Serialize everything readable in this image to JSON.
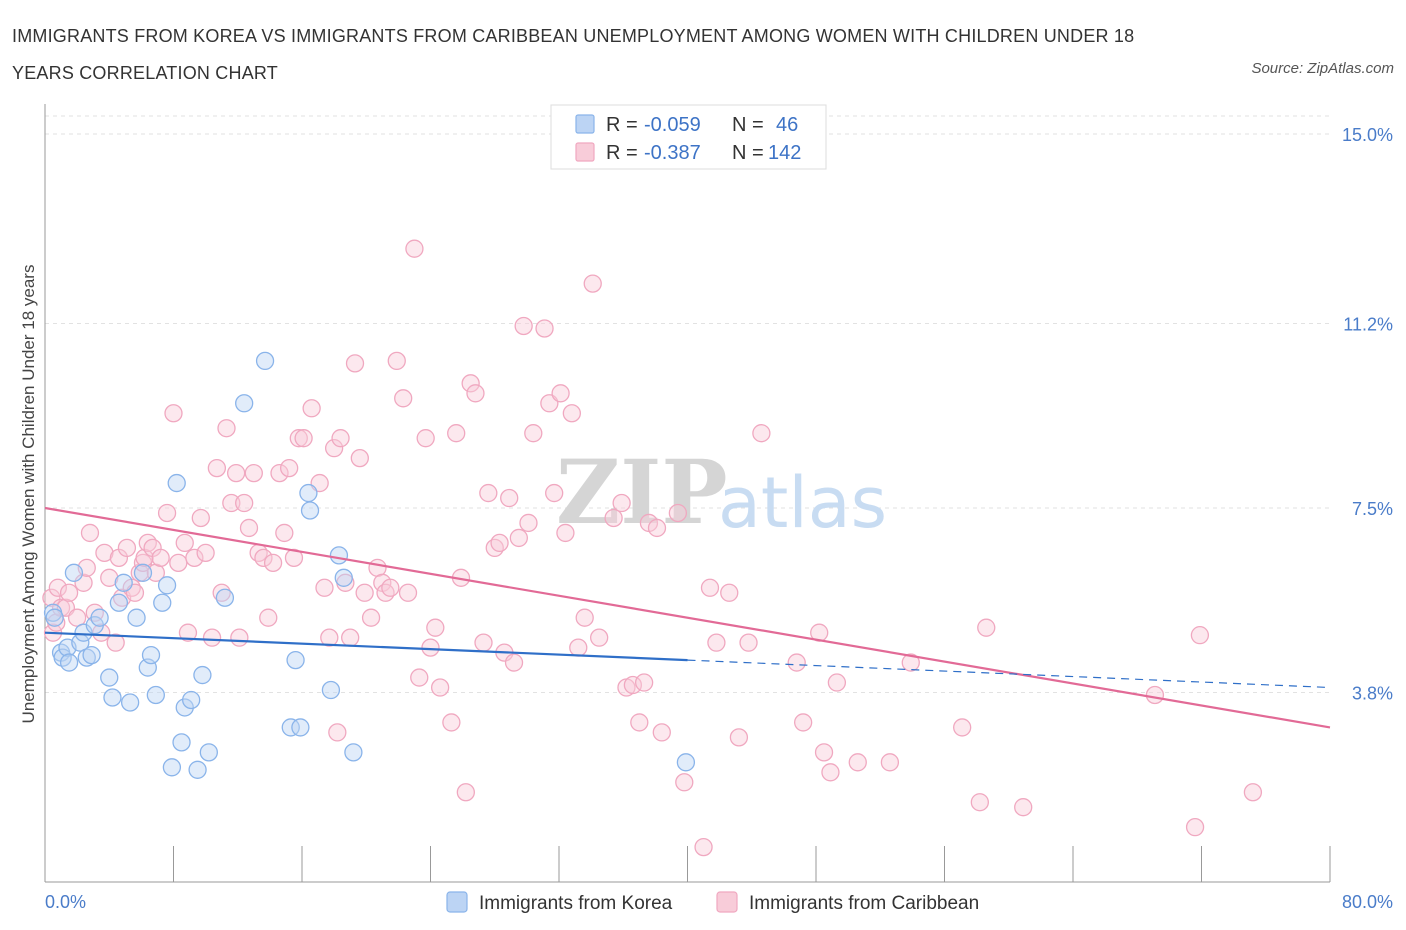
{
  "title": "IMMIGRANTS FROM KOREA VS IMMIGRANTS FROM CARIBBEAN UNEMPLOYMENT AMONG WOMEN WITH CHILDREN UNDER 18 YEARS CORRELATION CHART",
  "source": "Source: ZipAtlas.com",
  "watermark": {
    "zip": "ZIP",
    "atlas": "atlas"
  },
  "legend": {
    "korea": {
      "r_label": "R = ",
      "r_value": "-0.059",
      "n_label": "N = ",
      "n_value": "46"
    },
    "caribbean": {
      "r_label": "R = ",
      "r_value": "-0.387",
      "n_label": "N = ",
      "n_value": "142"
    }
  },
  "chart_data": {
    "type": "scatter",
    "title": "IMMIGRANTS FROM KOREA VS IMMIGRANTS FROM CARIBBEAN UNEMPLOYMENT AMONG WOMEN WITH CHILDREN UNDER 18 YEARS CORRELATION CHART",
    "xlabel": "",
    "ylabel": "Unemployment Among Women with Children Under 18 years",
    "xlim": [
      0,
      80
    ],
    "ylim": [
      0,
      15
    ],
    "x_tick_labels": [
      "0.0%",
      "80.0%"
    ],
    "y_ticks": [
      3.8,
      7.5,
      11.2,
      15.0
    ],
    "y_tick_labels": [
      "3.8%",
      "7.5%",
      "11.2%",
      "15.0%"
    ],
    "grid": true,
    "legend_position": "top-center",
    "colors": {
      "korea": "#8ab4ea",
      "caribbean": "#f0a8c0",
      "korea_line": "#2f6fc8",
      "caribbean_line": "#e26a96"
    },
    "series": [
      {
        "name": "Immigrants from Korea",
        "r": -0.059,
        "n": 46,
        "trend": {
          "x": [
            0,
            40
          ],
          "y": [
            5.0,
            4.45
          ]
        },
        "trend_dashed": {
          "x": [
            40,
            80
          ],
          "y": [
            4.45,
            3.9
          ]
        },
        "points": [
          [
            0.5,
            5.4
          ],
          [
            0.6,
            5.3
          ],
          [
            1.0,
            4.6
          ],
          [
            1.1,
            4.5
          ],
          [
            1.4,
            4.7
          ],
          [
            1.5,
            4.4
          ],
          [
            1.8,
            6.2
          ],
          [
            2.2,
            4.8
          ],
          [
            2.4,
            5.0
          ],
          [
            2.6,
            4.5
          ],
          [
            2.9,
            4.55
          ],
          [
            3.1,
            5.15
          ],
          [
            3.4,
            5.3
          ],
          [
            4.0,
            4.1
          ],
          [
            4.2,
            3.7
          ],
          [
            4.6,
            5.6
          ],
          [
            4.9,
            6.0
          ],
          [
            5.3,
            3.6
          ],
          [
            5.7,
            5.3
          ],
          [
            6.1,
            6.2
          ],
          [
            6.4,
            4.3
          ],
          [
            6.6,
            4.55
          ],
          [
            6.9,
            3.75
          ],
          [
            7.3,
            5.6
          ],
          [
            7.6,
            5.95
          ],
          [
            7.9,
            2.3
          ],
          [
            8.2,
            8.0
          ],
          [
            8.5,
            2.8
          ],
          [
            8.7,
            3.5
          ],
          [
            9.1,
            3.65
          ],
          [
            9.5,
            2.25
          ],
          [
            9.8,
            4.15
          ],
          [
            10.2,
            2.6
          ],
          [
            11.2,
            5.7
          ],
          [
            12.4,
            9.6
          ],
          [
            13.7,
            10.45
          ],
          [
            15.3,
            3.1
          ],
          [
            15.6,
            4.45
          ],
          [
            15.9,
            3.1
          ],
          [
            16.4,
            7.8
          ],
          [
            16.5,
            7.45
          ],
          [
            17.8,
            3.85
          ],
          [
            18.3,
            6.55
          ],
          [
            18.6,
            6.1
          ],
          [
            19.2,
            2.6
          ],
          [
            39.9,
            2.4
          ]
        ]
      },
      {
        "name": "Immigrants from Caribbean",
        "r": -0.387,
        "n": 142,
        "trend": {
          "x": [
            0,
            80
          ],
          "y": [
            7.5,
            3.1
          ]
        },
        "points": [
          [
            0.4,
            5.7
          ],
          [
            0.5,
            5.0
          ],
          [
            0.7,
            5.2
          ],
          [
            0.8,
            5.9
          ],
          [
            1.0,
            5.5
          ],
          [
            1.3,
            5.5
          ],
          [
            1.5,
            5.8
          ],
          [
            2.0,
            5.3
          ],
          [
            2.4,
            6.0
          ],
          [
            2.6,
            6.3
          ],
          [
            2.8,
            7.0
          ],
          [
            3.1,
            5.4
          ],
          [
            3.5,
            5.0
          ],
          [
            3.7,
            6.6
          ],
          [
            4.0,
            6.1
          ],
          [
            4.4,
            4.8
          ],
          [
            4.6,
            6.5
          ],
          [
            4.8,
            5.7
          ],
          [
            5.1,
            6.7
          ],
          [
            5.4,
            5.9
          ],
          [
            5.6,
            5.8
          ],
          [
            5.9,
            6.2
          ],
          [
            6.1,
            6.4
          ],
          [
            6.2,
            6.5
          ],
          [
            6.4,
            6.8
          ],
          [
            6.7,
            6.7
          ],
          [
            6.9,
            6.2
          ],
          [
            7.2,
            6.5
          ],
          [
            7.6,
            7.4
          ],
          [
            8.0,
            9.4
          ],
          [
            8.3,
            6.4
          ],
          [
            8.7,
            6.8
          ],
          [
            8.9,
            5.0
          ],
          [
            9.3,
            6.5
          ],
          [
            9.7,
            7.3
          ],
          [
            10.0,
            6.6
          ],
          [
            10.4,
            4.9
          ],
          [
            10.7,
            8.3
          ],
          [
            11.0,
            5.8
          ],
          [
            11.3,
            9.1
          ],
          [
            11.6,
            7.6
          ],
          [
            11.9,
            8.2
          ],
          [
            12.1,
            4.9
          ],
          [
            12.4,
            7.6
          ],
          [
            12.7,
            7.1
          ],
          [
            13.0,
            8.2
          ],
          [
            13.3,
            6.6
          ],
          [
            13.6,
            6.5
          ],
          [
            13.9,
            5.3
          ],
          [
            14.2,
            6.4
          ],
          [
            14.6,
            8.2
          ],
          [
            14.9,
            7.0
          ],
          [
            15.2,
            8.3
          ],
          [
            15.5,
            6.5
          ],
          [
            15.8,
            8.9
          ],
          [
            16.1,
            8.9
          ],
          [
            16.6,
            9.5
          ],
          [
            17.1,
            8.0
          ],
          [
            17.4,
            5.9
          ],
          [
            17.7,
            4.9
          ],
          [
            18.0,
            8.7
          ],
          [
            18.2,
            3.0
          ],
          [
            18.4,
            8.9
          ],
          [
            18.7,
            6.0
          ],
          [
            19.0,
            4.9
          ],
          [
            19.3,
            10.4
          ],
          [
            19.6,
            8.5
          ],
          [
            19.9,
            5.8
          ],
          [
            20.3,
            5.3
          ],
          [
            20.7,
            6.3
          ],
          [
            21.0,
            6.0
          ],
          [
            21.2,
            5.8
          ],
          [
            21.5,
            5.9
          ],
          [
            21.9,
            10.45
          ],
          [
            22.3,
            9.7
          ],
          [
            22.6,
            5.8
          ],
          [
            23.0,
            12.7
          ],
          [
            23.3,
            4.1
          ],
          [
            23.7,
            8.9
          ],
          [
            24.0,
            4.7
          ],
          [
            24.3,
            5.1
          ],
          [
            24.6,
            3.9
          ],
          [
            25.3,
            3.2
          ],
          [
            25.6,
            9.0
          ],
          [
            25.9,
            6.1
          ],
          [
            26.2,
            1.8
          ],
          [
            26.5,
            10.0
          ],
          [
            26.8,
            9.8
          ],
          [
            27.3,
            4.8
          ],
          [
            27.6,
            7.8
          ],
          [
            28.0,
            6.7
          ],
          [
            28.3,
            6.8
          ],
          [
            28.6,
            4.6
          ],
          [
            28.9,
            7.7
          ],
          [
            29.2,
            4.4
          ],
          [
            29.5,
            6.9
          ],
          [
            29.8,
            11.15
          ],
          [
            30.1,
            7.2
          ],
          [
            30.4,
            9.0
          ],
          [
            31.1,
            11.1
          ],
          [
            31.4,
            9.6
          ],
          [
            31.7,
            7.8
          ],
          [
            32.1,
            9.8
          ],
          [
            32.4,
            7.0
          ],
          [
            32.8,
            9.4
          ],
          [
            33.2,
            4.7
          ],
          [
            33.6,
            5.3
          ],
          [
            34.1,
            12.0
          ],
          [
            34.5,
            4.9
          ],
          [
            35.4,
            7.3
          ],
          [
            35.9,
            7.6
          ],
          [
            36.2,
            3.9
          ],
          [
            36.6,
            3.95
          ],
          [
            37.0,
            3.2
          ],
          [
            37.3,
            4.0
          ],
          [
            37.6,
            7.2
          ],
          [
            38.1,
            7.1
          ],
          [
            38.4,
            3.0
          ],
          [
            39.4,
            7.4
          ],
          [
            39.8,
            2.0
          ],
          [
            41.0,
            0.7
          ],
          [
            41.4,
            5.9
          ],
          [
            41.8,
            4.8
          ],
          [
            42.6,
            5.8
          ],
          [
            43.2,
            2.9
          ],
          [
            43.8,
            4.8
          ],
          [
            44.6,
            9.0
          ],
          [
            46.8,
            4.4
          ],
          [
            47.2,
            3.2
          ],
          [
            48.2,
            5.0
          ],
          [
            48.5,
            2.6
          ],
          [
            48.9,
            2.2
          ],
          [
            49.3,
            4.0
          ],
          [
            50.6,
            2.4
          ],
          [
            52.6,
            2.4
          ],
          [
            53.9,
            4.4
          ],
          [
            57.1,
            3.1
          ],
          [
            58.2,
            1.6
          ],
          [
            58.6,
            5.1
          ],
          [
            60.9,
            1.5
          ],
          [
            69.1,
            3.75
          ],
          [
            71.6,
            1.1
          ],
          [
            71.9,
            4.95
          ],
          [
            75.2,
            1.8
          ]
        ]
      }
    ]
  },
  "bottom_legend": {
    "korea": "Immigrants from Korea",
    "caribbean": "Immigrants from Caribbean"
  }
}
